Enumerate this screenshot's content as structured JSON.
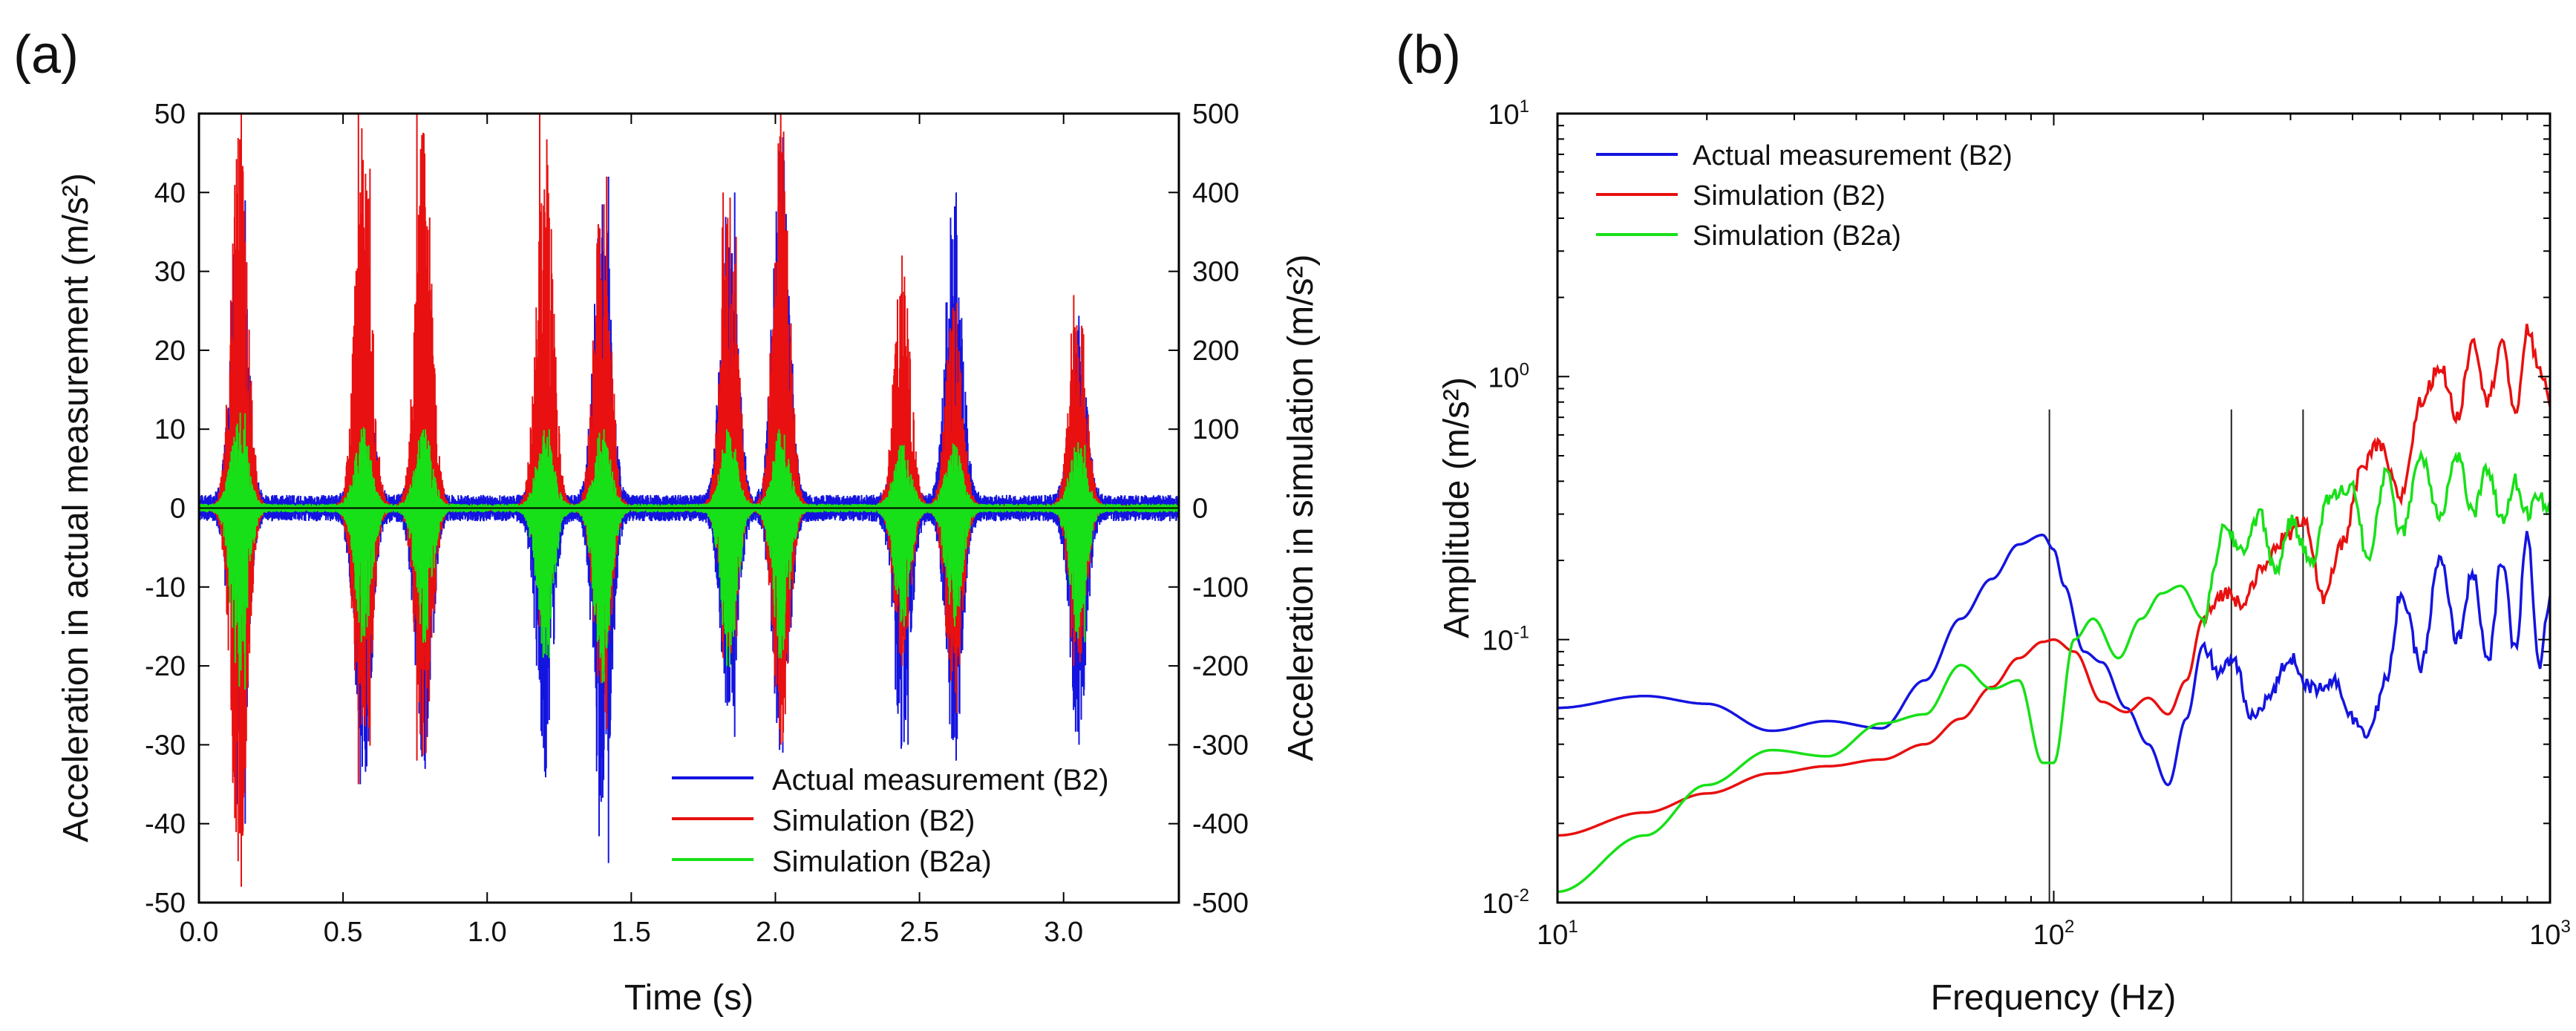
{
  "chart_data": [
    {
      "type": "line",
      "panel_label": "(a)",
      "xlabel": "Time (s)",
      "ylabel": "Acceleration in actual measurement (m/s²)",
      "ylabel_right": "Acceleration in simulation (m/s²)",
      "xlim": [
        0,
        3.4
      ],
      "ylim": [
        -50,
        50
      ],
      "ylim_right": [
        -500,
        500
      ],
      "xticks": [
        "0.0",
        "0.5",
        "1.0",
        "1.5",
        "2.0",
        "2.5",
        "3.0"
      ],
      "yticks": [
        "50",
        "40",
        "30",
        "20",
        "10",
        "0",
        "-10",
        "-20",
        "-30",
        "-40",
        "-50"
      ],
      "yticks_right": [
        "500",
        "400",
        "300",
        "200",
        "100",
        "0",
        "-100",
        "-200",
        "-300",
        "-400",
        "-500"
      ],
      "legend_position": "lower-right",
      "burst_times": [
        0.14,
        0.57,
        0.78,
        1.2,
        1.4,
        1.84,
        2.02,
        2.44,
        2.62,
        3.05
      ],
      "series": [
        {
          "name": "Actual measurement (B2)",
          "color": "#1414e0",
          "axis": "left",
          "peaks_max": [
            39,
            23,
            24,
            12,
            42,
            40,
            47,
            12,
            40,
            23
          ],
          "peaks_min": [
            -40,
            -35,
            -32,
            -33,
            -45,
            -29,
            -31,
            -30,
            -32,
            -30
          ]
        },
        {
          "name": "Simulation (B2)",
          "color": "#e81010",
          "axis": "right",
          "peaks_max": [
            500,
            500,
            500,
            500,
            420,
            400,
            500,
            320,
            260,
            270
          ],
          "peaks_min": [
            -480,
            -350,
            -320,
            -150,
            -280,
            -190,
            -300,
            -200,
            -260,
            -200
          ]
        },
        {
          "name": "Simulation (B2a)",
          "color": "#18e018",
          "axis": "right",
          "peaks_max": [
            120,
            100,
            100,
            100,
            100,
            100,
            100,
            80,
            80,
            80
          ],
          "peaks_min": [
            -230,
            -170,
            -170,
            -190,
            -220,
            -200,
            -190,
            -150,
            -150,
            -170
          ]
        }
      ]
    },
    {
      "type": "line",
      "panel_label": "(b)",
      "xlabel": "Frequency (Hz)",
      "ylabel": "Amplitude (m/s²)",
      "xscale": "log",
      "yscale": "log",
      "xlim": [
        10,
        1000
      ],
      "ylim": [
        0.01,
        10
      ],
      "xticks": [
        {
          "b": "10",
          "e": "1"
        },
        {
          "b": "10",
          "e": "2"
        },
        {
          "b": "10",
          "e": "3"
        }
      ],
      "yticks": [
        {
          "b": "10",
          "e": "1"
        },
        {
          "b": "10",
          "e": "0"
        },
        {
          "b": "10",
          "e": "-1"
        },
        {
          "b": "10",
          "e": "-2"
        }
      ],
      "legend_position": "top-left",
      "vertical_lines": [
        98,
        228,
        318
      ],
      "series": [
        {
          "name": "Actual measurement (B2)",
          "color": "#1414e0",
          "x": [
            10,
            15,
            20,
            27,
            35,
            45,
            55,
            65,
            75,
            85,
            95,
            100,
            105,
            115,
            125,
            140,
            155,
            170,
            185,
            200,
            215,
            230,
            250,
            270,
            300,
            330,
            370,
            400,
            430,
            470,
            500,
            550,
            600,
            650,
            700,
            750,
            800,
            850,
            900,
            950,
            1000
          ],
          "y": [
            0.055,
            0.061,
            0.057,
            0.045,
            0.049,
            0.046,
            0.07,
            0.12,
            0.17,
            0.23,
            0.25,
            0.22,
            0.16,
            0.09,
            0.082,
            0.055,
            0.04,
            0.028,
            0.05,
            0.095,
            0.075,
            0.085,
            0.05,
            0.06,
            0.085,
            0.065,
            0.07,
            0.05,
            0.045,
            0.07,
            0.15,
            0.08,
            0.2,
            0.1,
            0.18,
            0.08,
            0.2,
            0.09,
            0.25,
            0.08,
            0.14
          ]
        },
        {
          "name": "Simulation (B2)",
          "color": "#e81010",
          "x": [
            10,
            15,
            20,
            27,
            35,
            45,
            55,
            65,
            75,
            85,
            95,
            100,
            110,
            125,
            140,
            155,
            170,
            185,
            200,
            220,
            240,
            260,
            290,
            320,
            350,
            380,
            420,
            450,
            500,
            550,
            600,
            650,
            700,
            750,
            800,
            850,
            900,
            950,
            1000
          ],
          "y": [
            0.018,
            0.022,
            0.026,
            0.031,
            0.033,
            0.035,
            0.04,
            0.05,
            0.066,
            0.085,
            0.098,
            0.1,
            0.09,
            0.058,
            0.053,
            0.06,
            0.052,
            0.07,
            0.12,
            0.15,
            0.14,
            0.18,
            0.24,
            0.29,
            0.14,
            0.23,
            0.45,
            0.55,
            0.35,
            0.8,
            1.1,
            0.7,
            1.4,
            0.8,
            1.4,
            0.7,
            1.5,
            1.1,
            0.8
          ]
        },
        {
          "name": "Simulation (B2a)",
          "color": "#18e018",
          "x": [
            10,
            15,
            20,
            27,
            35,
            45,
            55,
            65,
            75,
            85,
            95,
            100,
            110,
            120,
            135,
            150,
            165,
            180,
            200,
            220,
            240,
            260,
            280,
            300,
            330,
            360,
            400,
            430,
            470,
            500,
            550,
            600,
            650,
            700,
            750,
            800,
            850,
            900,
            950,
            1000
          ],
          "y": [
            0.011,
            0.018,
            0.028,
            0.038,
            0.036,
            0.048,
            0.052,
            0.08,
            0.065,
            0.07,
            0.034,
            0.034,
            0.1,
            0.12,
            0.085,
            0.12,
            0.15,
            0.16,
            0.12,
            0.26,
            0.22,
            0.3,
            0.18,
            0.28,
            0.2,
            0.35,
            0.38,
            0.2,
            0.45,
            0.25,
            0.5,
            0.3,
            0.5,
            0.3,
            0.45,
            0.28,
            0.4,
            0.3,
            0.35,
            0.3
          ]
        }
      ]
    }
  ]
}
